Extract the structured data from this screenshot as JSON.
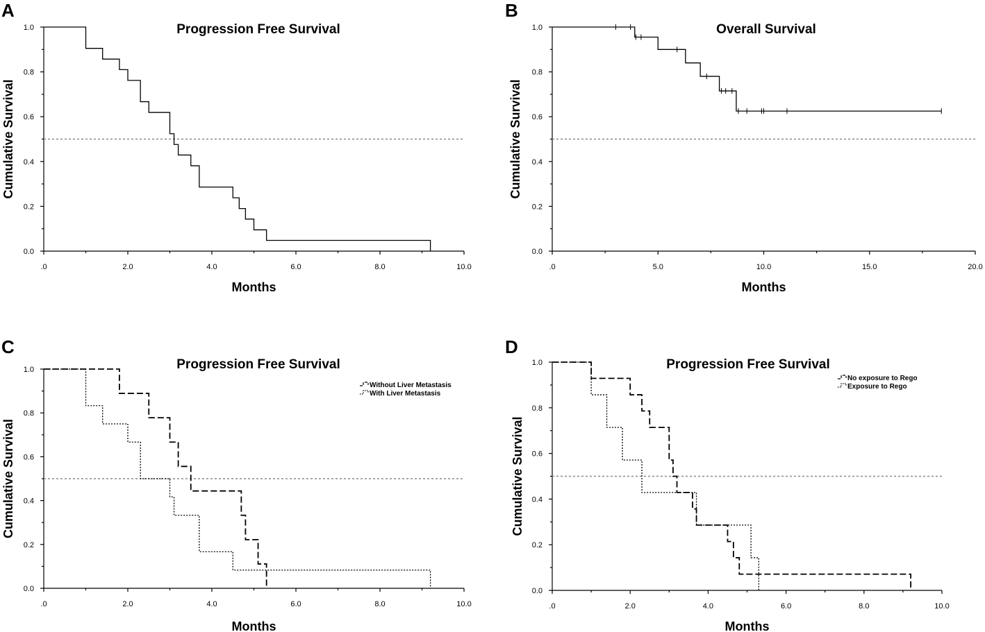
{
  "chart_data": [
    {
      "panel": "A",
      "type": "line",
      "title": "Progression Free Survival",
      "xlabel": "Months",
      "ylabel": "Cumulative Survival",
      "xlim": [
        0,
        10
      ],
      "ylim": [
        0,
        1
      ],
      "xticks": [
        ".0",
        "2.0",
        "4.0",
        "6.0",
        "8.0",
        "10.0"
      ],
      "xtick_values": [
        0,
        2,
        4,
        6,
        8,
        10
      ],
      "yticks": [
        "0.0",
        "0.2",
        "0.4",
        "0.6",
        "0.8",
        "1.0"
      ],
      "ytick_values": [
        0,
        0.2,
        0.4,
        0.6,
        0.8,
        1.0
      ],
      "reference_y": 0.5,
      "series": [
        {
          "name": "Progression Free Survival",
          "style": "solid",
          "steps": [
            [
              0,
              1.0
            ],
            [
              1.0,
              0.905
            ],
            [
              1.4,
              0.857
            ],
            [
              1.8,
              0.81
            ],
            [
              2.0,
              0.762
            ],
            [
              2.3,
              0.667
            ],
            [
              2.5,
              0.619
            ],
            [
              3.0,
              0.524
            ],
            [
              3.1,
              0.476
            ],
            [
              3.2,
              0.429
            ],
            [
              3.5,
              0.381
            ],
            [
              3.7,
              0.286
            ],
            [
              4.5,
              0.238
            ],
            [
              4.65,
              0.19
            ],
            [
              4.8,
              0.143
            ],
            [
              5.0,
              0.095
            ],
            [
              5.3,
              0.048
            ],
            [
              9.2,
              0.0
            ]
          ],
          "censored": []
        }
      ]
    },
    {
      "panel": "B",
      "type": "line",
      "title": "Overall Survival",
      "xlabel": "Months",
      "ylabel": "Cumulative Survival",
      "xlim": [
        0,
        20
      ],
      "ylim": [
        0,
        1
      ],
      "xticks": [
        ".0",
        "5.0",
        "10.0",
        "15.0",
        "20.0"
      ],
      "xtick_values": [
        0,
        5,
        10,
        15,
        20
      ],
      "yticks": [
        "0.0",
        "0.2",
        "0.4",
        "0.6",
        "0.8",
        "1.0"
      ],
      "ytick_values": [
        0,
        0.2,
        0.4,
        0.6,
        0.8,
        1.0
      ],
      "reference_y": 0.5,
      "series": [
        {
          "name": "Overall Survival",
          "style": "solid",
          "steps": [
            [
              0,
              1.0
            ],
            [
              3.9,
              0.955
            ],
            [
              5.0,
              0.9
            ],
            [
              6.3,
              0.84
            ],
            [
              7.0,
              0.78
            ],
            [
              7.9,
              0.715
            ],
            [
              8.7,
              0.625
            ],
            [
              18.4,
              0.625
            ]
          ],
          "censored": [
            [
              3.0,
              1.0
            ],
            [
              3.7,
              1.0
            ],
            [
              3.95,
              0.955
            ],
            [
              4.2,
              0.955
            ],
            [
              5.9,
              0.9
            ],
            [
              7.3,
              0.78
            ],
            [
              8.0,
              0.715
            ],
            [
              8.2,
              0.715
            ],
            [
              8.5,
              0.715
            ],
            [
              8.8,
              0.625
            ],
            [
              9.2,
              0.625
            ],
            [
              9.9,
              0.625
            ],
            [
              10.0,
              0.625
            ],
            [
              11.1,
              0.625
            ],
            [
              18.4,
              0.625
            ]
          ]
        }
      ]
    },
    {
      "panel": "C",
      "type": "line",
      "title": "Progression Free Survival",
      "xlabel": "Months",
      "ylabel": "Cumulative Survival",
      "xlim": [
        0,
        10
      ],
      "ylim": [
        0,
        1
      ],
      "xticks": [
        ".0",
        "2.0",
        "4.0",
        "6.0",
        "8.0",
        "10.0"
      ],
      "xtick_values": [
        0,
        2,
        4,
        6,
        8,
        10
      ],
      "yticks": [
        "0.0",
        "0.2",
        "0.4",
        "0.6",
        "0.8",
        "1.0"
      ],
      "ytick_values": [
        0,
        0.2,
        0.4,
        0.6,
        0.8,
        1.0
      ],
      "reference_y": 0.5,
      "legend_position": "top-right",
      "series": [
        {
          "name": "Without Liver Metastasis",
          "style": "dashed",
          "steps": [
            [
              0,
              1.0
            ],
            [
              1.8,
              0.889
            ],
            [
              2.5,
              0.778
            ],
            [
              3.0,
              0.667
            ],
            [
              3.2,
              0.556
            ],
            [
              3.5,
              0.444
            ],
            [
              4.7,
              0.333
            ],
            [
              4.8,
              0.222
            ],
            [
              5.1,
              0.111
            ],
            [
              5.3,
              0.0
            ]
          ],
          "censored": []
        },
        {
          "name": "With Liver Metastasis",
          "style": "dotted",
          "steps": [
            [
              0,
              1.0
            ],
            [
              1.0,
              0.833
            ],
            [
              1.4,
              0.75
            ],
            [
              2.0,
              0.667
            ],
            [
              2.3,
              0.5
            ],
            [
              3.0,
              0.417
            ],
            [
              3.1,
              0.333
            ],
            [
              3.7,
              0.167
            ],
            [
              4.5,
              0.083
            ],
            [
              9.2,
              0.0
            ]
          ],
          "censored": []
        }
      ]
    },
    {
      "panel": "D",
      "type": "line",
      "title": "Progression Free Survival",
      "xlabel": "Months",
      "ylabel": "Cumulative Survival",
      "xlim": [
        0,
        10
      ],
      "ylim": [
        0,
        1
      ],
      "xticks": [
        ".0",
        "2.0",
        "4.0",
        "6.0",
        "8.0",
        "10.0"
      ],
      "xtick_values": [
        0,
        2,
        4,
        6,
        8,
        10
      ],
      "yticks": [
        "0.0",
        "0.2",
        "0.4",
        "0.6",
        "0.8",
        "1.0"
      ],
      "ytick_values": [
        0,
        0.2,
        0.4,
        0.6,
        0.8,
        1.0
      ],
      "reference_y": 0.5,
      "legend_position": "top-right",
      "series": [
        {
          "name": "No exposure to Rego",
          "style": "dashed",
          "steps": [
            [
              0,
              1.0
            ],
            [
              1.0,
              0.929
            ],
            [
              2.0,
              0.857
            ],
            [
              2.3,
              0.786
            ],
            [
              2.5,
              0.714
            ],
            [
              3.0,
              0.571
            ],
            [
              3.1,
              0.5
            ],
            [
              3.2,
              0.429
            ],
            [
              3.6,
              0.357
            ],
            [
              3.7,
              0.286
            ],
            [
              4.5,
              0.214
            ],
            [
              4.65,
              0.143
            ],
            [
              4.8,
              0.071
            ],
            [
              9.2,
              0.0
            ]
          ],
          "censored": []
        },
        {
          "name": "Exposure to Rego",
          "style": "dotted",
          "steps": [
            [
              0,
              1.0
            ],
            [
              1.0,
              0.857
            ],
            [
              1.4,
              0.714
            ],
            [
              1.8,
              0.571
            ],
            [
              2.3,
              0.429
            ],
            [
              3.7,
              0.286
            ],
            [
              5.1,
              0.143
            ],
            [
              5.3,
              0.0
            ]
          ],
          "censored": []
        }
      ]
    }
  ]
}
